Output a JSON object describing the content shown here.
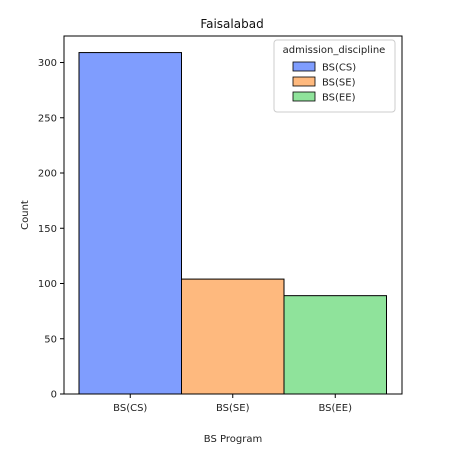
{
  "chart_data": {
    "type": "bar",
    "title": "Faisalabad",
    "xlabel": "BS Program",
    "ylabel": "Count",
    "categories": [
      "BS(CS)",
      "BS(SE)",
      "BS(EE)"
    ],
    "values": [
      309,
      104,
      89
    ],
    "colors": [
      "#7f9dfe",
      "#feb97e",
      "#8fe39b"
    ],
    "ylim": [
      0,
      324
    ],
    "yticks": [
      0,
      50,
      100,
      150,
      200,
      250,
      300
    ],
    "grid": false,
    "legend": {
      "title": "admission_discipline",
      "placement": "top-right",
      "entries": [
        "BS(CS)",
        "BS(SE)",
        "BS(EE)"
      ]
    }
  }
}
